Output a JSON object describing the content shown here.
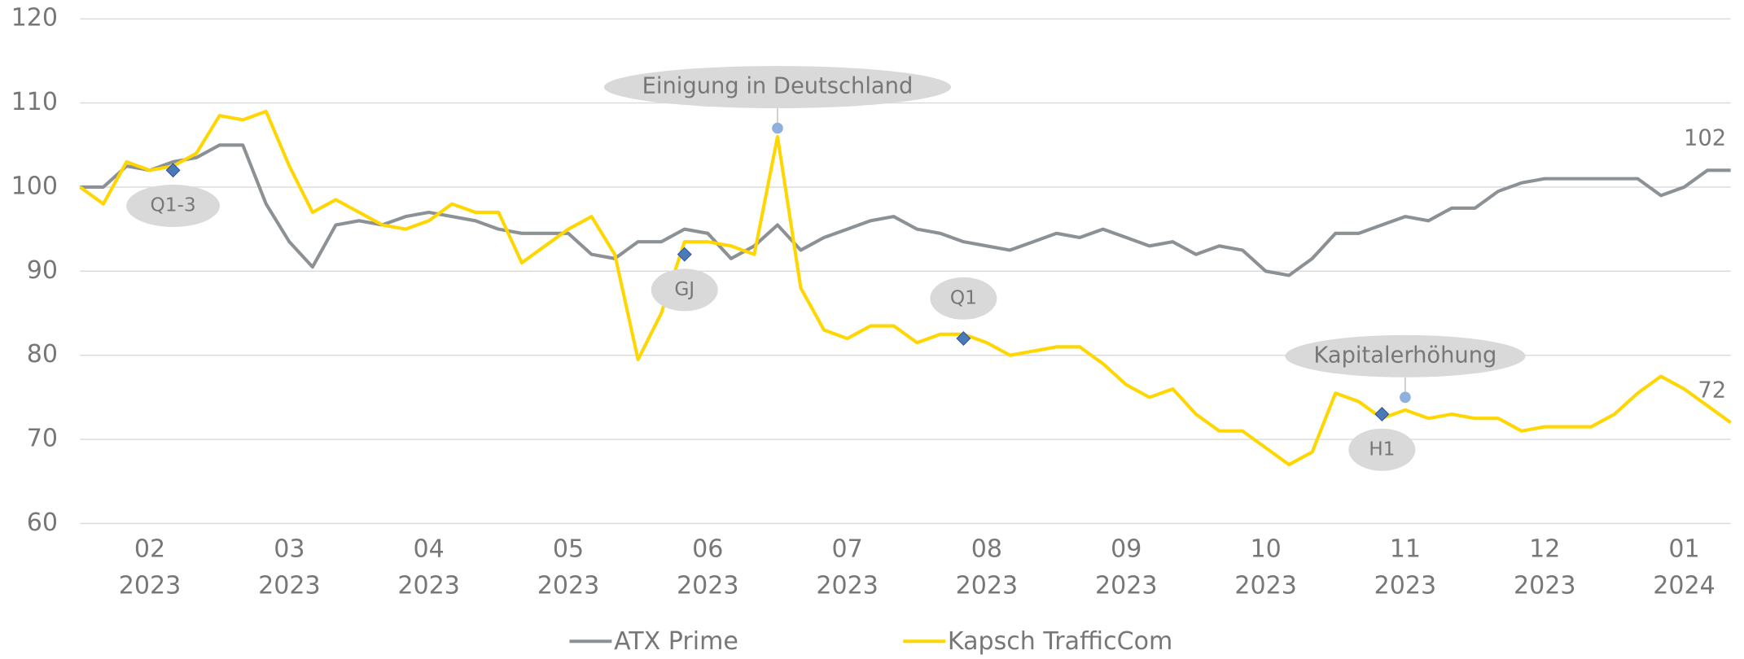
{
  "chart_data": {
    "type": "line",
    "categories": [
      null,
      null,
      null,
      "02\n2023",
      null,
      null,
      null,
      null,
      null,
      "03\n2023",
      null,
      null,
      null,
      null,
      null,
      "04\n2023",
      null,
      null,
      null,
      null,
      null,
      "05\n2023",
      null,
      null,
      null,
      null,
      null,
      "06\n2023",
      null,
      null,
      null,
      null,
      null,
      "07\n2023",
      null,
      null,
      null,
      null,
      null,
      "08\n2023",
      null,
      null,
      null,
      null,
      null,
      "09\n2023",
      null,
      null,
      null,
      null,
      null,
      "10\n2023",
      null,
      null,
      null,
      null,
      null,
      "11\n2023",
      null,
      null,
      null,
      null,
      null,
      "12\n2023",
      null,
      null,
      null,
      null,
      null,
      "01\n2024",
      null,
      null
    ],
    "series": [
      {
        "name": "ATX Prime",
        "color": "#8c9196",
        "label_last": true,
        "values": [
          100,
          100,
          102.5,
          102,
          103,
          103.5,
          105,
          105,
          98,
          93.5,
          90.5,
          95.5,
          96,
          95.5,
          96.5,
          97,
          96.5,
          96,
          95,
          94.5,
          94.5,
          94.5,
          92,
          91.5,
          93.5,
          93.5,
          95,
          94.5,
          91.5,
          93,
          95.5,
          92.5,
          94,
          95,
          96,
          96.5,
          95,
          94.5,
          93.5,
          93,
          92.5,
          93.5,
          94.5,
          94,
          95,
          94,
          93,
          93.5,
          92,
          93,
          92.5,
          90,
          89.5,
          91.5,
          94.5,
          94.5,
          95.5,
          96.5,
          96,
          97.5,
          97.5,
          99.5,
          100.5,
          101,
          101,
          101,
          101,
          101,
          99,
          100,
          102,
          102
        ]
      },
      {
        "name": "Kapsch TrafficCom",
        "color": "#ffd600",
        "label_last": true,
        "values": [
          100,
          98,
          103,
          102,
          102.5,
          104,
          108.5,
          108,
          109,
          102.5,
          97,
          98.5,
          97,
          95.5,
          95,
          96,
          98,
          97,
          97,
          91,
          93,
          95,
          96.5,
          92,
          79.5,
          85,
          93.5,
          93.5,
          93,
          92,
          106,
          88,
          83,
          82,
          83.5,
          83.5,
          81.5,
          82.5,
          82.5,
          81.5,
          80,
          80.5,
          81,
          81,
          79,
          76.5,
          75,
          76,
          73,
          71,
          71,
          69,
          67,
          68.5,
          75.5,
          74.5,
          72.5,
          73.5,
          72.5,
          73,
          72.5,
          72.5,
          71,
          71.5,
          71.5,
          71.5,
          73,
          75.5,
          77.5,
          76,
          74,
          72
        ]
      }
    ],
    "ylim": [
      60,
      120
    ],
    "yticks": [
      60,
      70,
      80,
      90,
      100,
      110,
      120
    ],
    "grid": true,
    "legend": "bottom",
    "annotations": [
      {
        "text": "Q1-3",
        "index": 4,
        "value": 102,
        "marker": "diamond",
        "position": "below"
      },
      {
        "text": "GJ",
        "index": 26,
        "value": 92,
        "marker": "diamond",
        "position": "below"
      },
      {
        "text": "Einigung in Deutschland",
        "index": 30,
        "value": 107,
        "marker": "circle",
        "position": "above"
      },
      {
        "text": "Q1",
        "index": 38,
        "value": 82,
        "marker": "diamond",
        "position": "above"
      },
      {
        "text": "Kapitalerhöhung",
        "index": 57,
        "value": 75,
        "marker": "circle",
        "position": "above"
      },
      {
        "text": "H1",
        "index": 56,
        "value": 73,
        "marker": "diamond",
        "position": "below"
      }
    ]
  }
}
